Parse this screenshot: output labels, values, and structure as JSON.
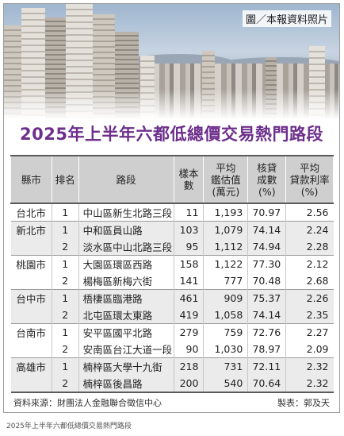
{
  "photo_credit": "圖／本報資料照片",
  "title": "2025年上半年六都低總價交易熱門路段",
  "table": {
    "headers": [
      "縣市",
      "排名",
      "路段",
      "樣本數",
      "平均鑑估值(萬元)",
      "核貸成數(%)",
      "平均貸款利率(%)"
    ],
    "header_lines": [
      [
        "縣市"
      ],
      [
        "排名"
      ],
      [
        "路段"
      ],
      [
        "樣本",
        "數"
      ],
      [
        "平均",
        "鑑估值",
        "(萬元)"
      ],
      [
        "核貸",
        "成數",
        "(%)"
      ],
      [
        "平均",
        "貸款利率",
        "(%)"
      ]
    ],
    "rows": [
      {
        "city": "台北市",
        "rank": "1",
        "road": "中山區新生北路三段",
        "samples": "11",
        "appraisal": "1,193",
        "ltv": "70.97",
        "rate": "2.56"
      },
      {
        "city": "新北市",
        "rank": "1",
        "road": "中和區員山路",
        "samples": "103",
        "appraisal": "1,079",
        "ltv": "74.14",
        "rate": "2.24"
      },
      {
        "city": "",
        "rank": "2",
        "road": "淡水區中山北路三段",
        "samples": "95",
        "appraisal": "1,112",
        "ltv": "74.94",
        "rate": "2.28"
      },
      {
        "city": "桃園市",
        "rank": "1",
        "road": "大園區環區西路",
        "samples": "158",
        "appraisal": "1,122",
        "ltv": "77.30",
        "rate": "2.12"
      },
      {
        "city": "",
        "rank": "2",
        "road": "楊梅區新梅六街",
        "samples": "141",
        "appraisal": "777",
        "ltv": "70.48",
        "rate": "2.68"
      },
      {
        "city": "台中市",
        "rank": "1",
        "road": "梧棲區臨港路",
        "samples": "461",
        "appraisal": "909",
        "ltv": "75.37",
        "rate": "2.26"
      },
      {
        "city": "",
        "rank": "2",
        "road": "北屯區環太東路",
        "samples": "419",
        "appraisal": "1,058",
        "ltv": "74.14",
        "rate": "2.35"
      },
      {
        "city": "台南市",
        "rank": "1",
        "road": "安平區國平北路",
        "samples": "279",
        "appraisal": "759",
        "ltv": "72.76",
        "rate": "2.27"
      },
      {
        "city": "",
        "rank": "2",
        "road": "安南區台江大道一段",
        "samples": "90",
        "appraisal": "1,030",
        "ltv": "78.97",
        "rate": "2.09"
      },
      {
        "city": "高雄市",
        "rank": "1",
        "road": "楠梓區大學十九街",
        "samples": "218",
        "appraisal": "731",
        "ltv": "72.11",
        "rate": "2.32"
      },
      {
        "city": "",
        "rank": "2",
        "road": "楠梓區後昌路",
        "samples": "200",
        "appraisal": "540",
        "ltv": "70.64",
        "rate": "2.32"
      }
    ]
  },
  "source": "資料來源：財團法人金融聯合徵信中心",
  "maker": "製表：郭及天",
  "caption": "2025年上半年六都低總價交易熱門路段",
  "colors": {
    "title": "#6d2f8c",
    "header_bg": "#cfcfcf",
    "alt_row": "#ebebeb"
  }
}
